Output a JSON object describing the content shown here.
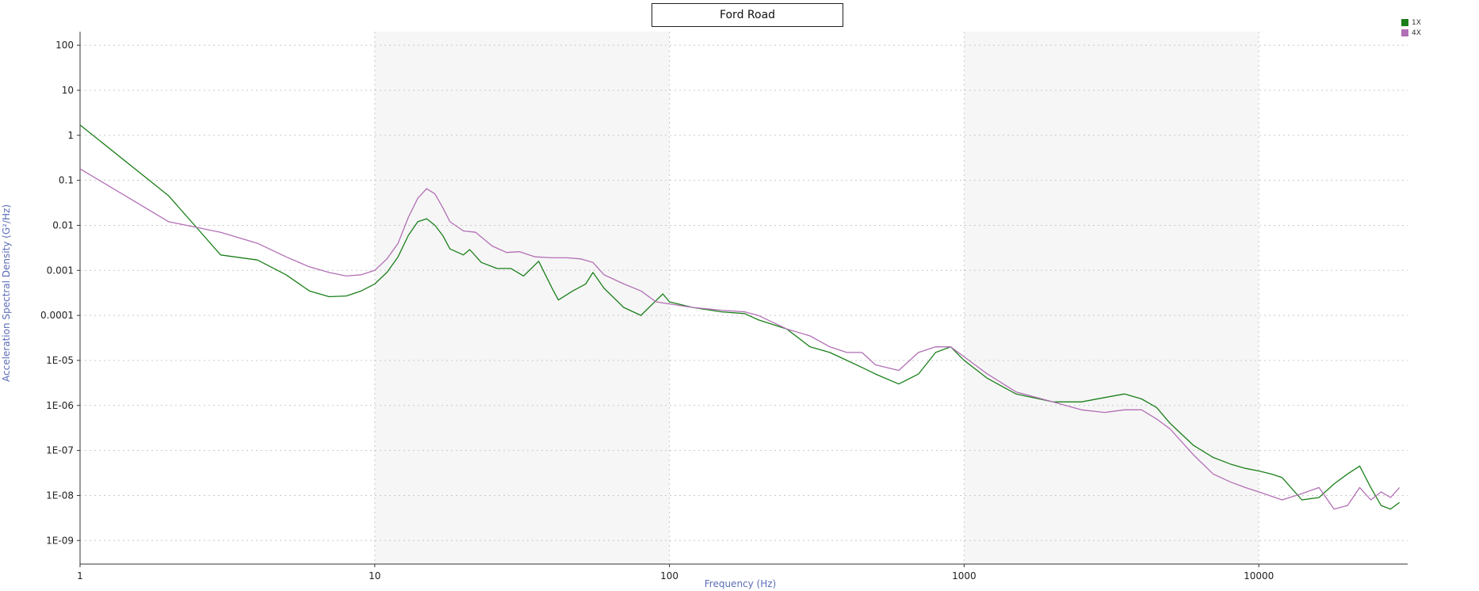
{
  "chart_data": {
    "type": "line",
    "title": "Ford Road",
    "xlabel": "Frequency (Hz)",
    "ylabel": "Acceleration Spectral Density (G²/Hz)",
    "xscale": "log",
    "yscale": "log",
    "xlim": [
      1,
      32000
    ],
    "ylim": [
      3e-10,
      200
    ],
    "x_ticks": [
      {
        "value": 1,
        "label": "1"
      },
      {
        "value": 10,
        "label": "10"
      },
      {
        "value": 100,
        "label": "100"
      },
      {
        "value": 1000,
        "label": "1000"
      },
      {
        "value": 10000,
        "label": "10000"
      }
    ],
    "y_ticks": [
      {
        "value": 100,
        "label": "100"
      },
      {
        "value": 10,
        "label": "10"
      },
      {
        "value": 1,
        "label": "1"
      },
      {
        "value": 0.1,
        "label": "0.1"
      },
      {
        "value": 0.01,
        "label": "0.01"
      },
      {
        "value": 0.001,
        "label": "0.001"
      },
      {
        "value": 0.0001,
        "label": "0.0001"
      },
      {
        "value": 1e-05,
        "label": "1E-05"
      },
      {
        "value": 1e-06,
        "label": "1E-06"
      },
      {
        "value": 1e-07,
        "label": "1E-07"
      },
      {
        "value": 1e-08,
        "label": "1E-08"
      },
      {
        "value": 1e-09,
        "label": "1E-09"
      }
    ],
    "grid": true,
    "legend_position": "top-right",
    "series": [
      {
        "name": "1X",
        "color": "#1a7f1a",
        "points": [
          [
            1,
            1.7
          ],
          [
            2,
            0.045
          ],
          [
            3,
            0.0022
          ],
          [
            4,
            0.0017
          ],
          [
            5,
            0.0008
          ],
          [
            6,
            0.00035
          ],
          [
            7,
            0.00026
          ],
          [
            8,
            0.00027
          ],
          [
            9,
            0.00035
          ],
          [
            10,
            0.0005
          ],
          [
            11,
            0.0009
          ],
          [
            12,
            0.002
          ],
          [
            13,
            0.006
          ],
          [
            14,
            0.012
          ],
          [
            15,
            0.014
          ],
          [
            16,
            0.01
          ],
          [
            17,
            0.006
          ],
          [
            18,
            0.003
          ],
          [
            20,
            0.0022
          ],
          [
            21,
            0.0029
          ],
          [
            23,
            0.0015
          ],
          [
            26,
            0.0011
          ],
          [
            29,
            0.0011
          ],
          [
            32,
            0.00075
          ],
          [
            36,
            0.0016
          ],
          [
            40,
            0.0004
          ],
          [
            42,
            0.00022
          ],
          [
            47,
            0.00035
          ],
          [
            52,
            0.0005
          ],
          [
            55,
            0.0009
          ],
          [
            60,
            0.0004
          ],
          [
            70,
            0.00015
          ],
          [
            80,
            0.0001
          ],
          [
            95,
            0.0003
          ],
          [
            100,
            0.0002
          ],
          [
            120,
            0.00015
          ],
          [
            150,
            0.00012
          ],
          [
            180,
            0.00011
          ],
          [
            200,
            8e-05
          ],
          [
            250,
            5e-05
          ],
          [
            300,
            2e-05
          ],
          [
            350,
            1.5e-05
          ],
          [
            400,
            1e-05
          ],
          [
            450,
            7e-06
          ],
          [
            500,
            5e-06
          ],
          [
            600,
            3e-06
          ],
          [
            700,
            5e-06
          ],
          [
            800,
            1.5e-05
          ],
          [
            900,
            2e-05
          ],
          [
            1000,
            1e-05
          ],
          [
            1200,
            4e-06
          ],
          [
            1500,
            1.8e-06
          ],
          [
            2000,
            1.2e-06
          ],
          [
            2500,
            1.2e-06
          ],
          [
            3000,
            1.5e-06
          ],
          [
            3500,
            1.8e-06
          ],
          [
            4000,
            1.4e-06
          ],
          [
            4500,
            9e-07
          ],
          [
            5000,
            4e-07
          ],
          [
            6000,
            1.3e-07
          ],
          [
            7000,
            7e-08
          ],
          [
            8000,
            5e-08
          ],
          [
            9000,
            4e-08
          ],
          [
            10000,
            3.5e-08
          ],
          [
            11000,
            3e-08
          ],
          [
            12000,
            2.5e-08
          ],
          [
            14000,
            8e-09
          ],
          [
            16000,
            9e-09
          ],
          [
            18000,
            1.8e-08
          ],
          [
            20000,
            3e-08
          ],
          [
            22000,
            4.5e-08
          ],
          [
            24000,
            1.5e-08
          ],
          [
            26000,
            6e-09
          ],
          [
            28000,
            5e-09
          ],
          [
            30000,
            7e-09
          ]
        ]
      },
      {
        "name": "4X",
        "color": "#b26fb5",
        "points": [
          [
            1,
            0.18
          ],
          [
            2,
            0.012
          ],
          [
            3,
            0.007
          ],
          [
            4,
            0.004
          ],
          [
            5,
            0.002
          ],
          [
            6,
            0.0012
          ],
          [
            7,
            0.0009
          ],
          [
            8,
            0.00075
          ],
          [
            9,
            0.0008
          ],
          [
            10,
            0.001
          ],
          [
            11,
            0.0018
          ],
          [
            12,
            0.004
          ],
          [
            13,
            0.015
          ],
          [
            14,
            0.04
          ],
          [
            15,
            0.065
          ],
          [
            16,
            0.05
          ],
          [
            17,
            0.025
          ],
          [
            18,
            0.012
          ],
          [
            20,
            0.0075
          ],
          [
            22,
            0.007
          ],
          [
            25,
            0.0035
          ],
          [
            28,
            0.0025
          ],
          [
            31,
            0.0026
          ],
          [
            35,
            0.002
          ],
          [
            40,
            0.0019
          ],
          [
            45,
            0.0019
          ],
          [
            50,
            0.0018
          ],
          [
            55,
            0.0015
          ],
          [
            60,
            0.0008
          ],
          [
            70,
            0.0005
          ],
          [
            80,
            0.00035
          ],
          [
            90,
            0.0002
          ],
          [
            100,
            0.00018
          ],
          [
            120,
            0.00015
          ],
          [
            150,
            0.00013
          ],
          [
            180,
            0.00012
          ],
          [
            200,
            0.0001
          ],
          [
            250,
            5e-05
          ],
          [
            300,
            3.5e-05
          ],
          [
            350,
            2e-05
          ],
          [
            400,
            1.5e-05
          ],
          [
            450,
            1.5e-05
          ],
          [
            500,
            8e-06
          ],
          [
            600,
            6e-06
          ],
          [
            700,
            1.5e-05
          ],
          [
            800,
            2e-05
          ],
          [
            900,
            2e-05
          ],
          [
            1000,
            1.2e-05
          ],
          [
            1200,
            5e-06
          ],
          [
            1500,
            2e-06
          ],
          [
            2000,
            1.2e-06
          ],
          [
            2500,
            8e-07
          ],
          [
            3000,
            7e-07
          ],
          [
            3500,
            8e-07
          ],
          [
            4000,
            8e-07
          ],
          [
            4500,
            5e-07
          ],
          [
            5000,
            3e-07
          ],
          [
            6000,
            8e-08
          ],
          [
            7000,
            3e-08
          ],
          [
            8000,
            2e-08
          ],
          [
            9000,
            1.5e-08
          ],
          [
            10000,
            1.2e-08
          ],
          [
            12000,
            8e-09
          ],
          [
            14000,
            1.1e-08
          ],
          [
            16000,
            1.5e-08
          ],
          [
            18000,
            5e-09
          ],
          [
            20000,
            6e-09
          ],
          [
            22000,
            1.5e-08
          ],
          [
            24000,
            8e-09
          ],
          [
            26000,
            1.2e-08
          ],
          [
            28000,
            9e-09
          ],
          [
            30000,
            1.5e-08
          ]
        ]
      }
    ]
  }
}
